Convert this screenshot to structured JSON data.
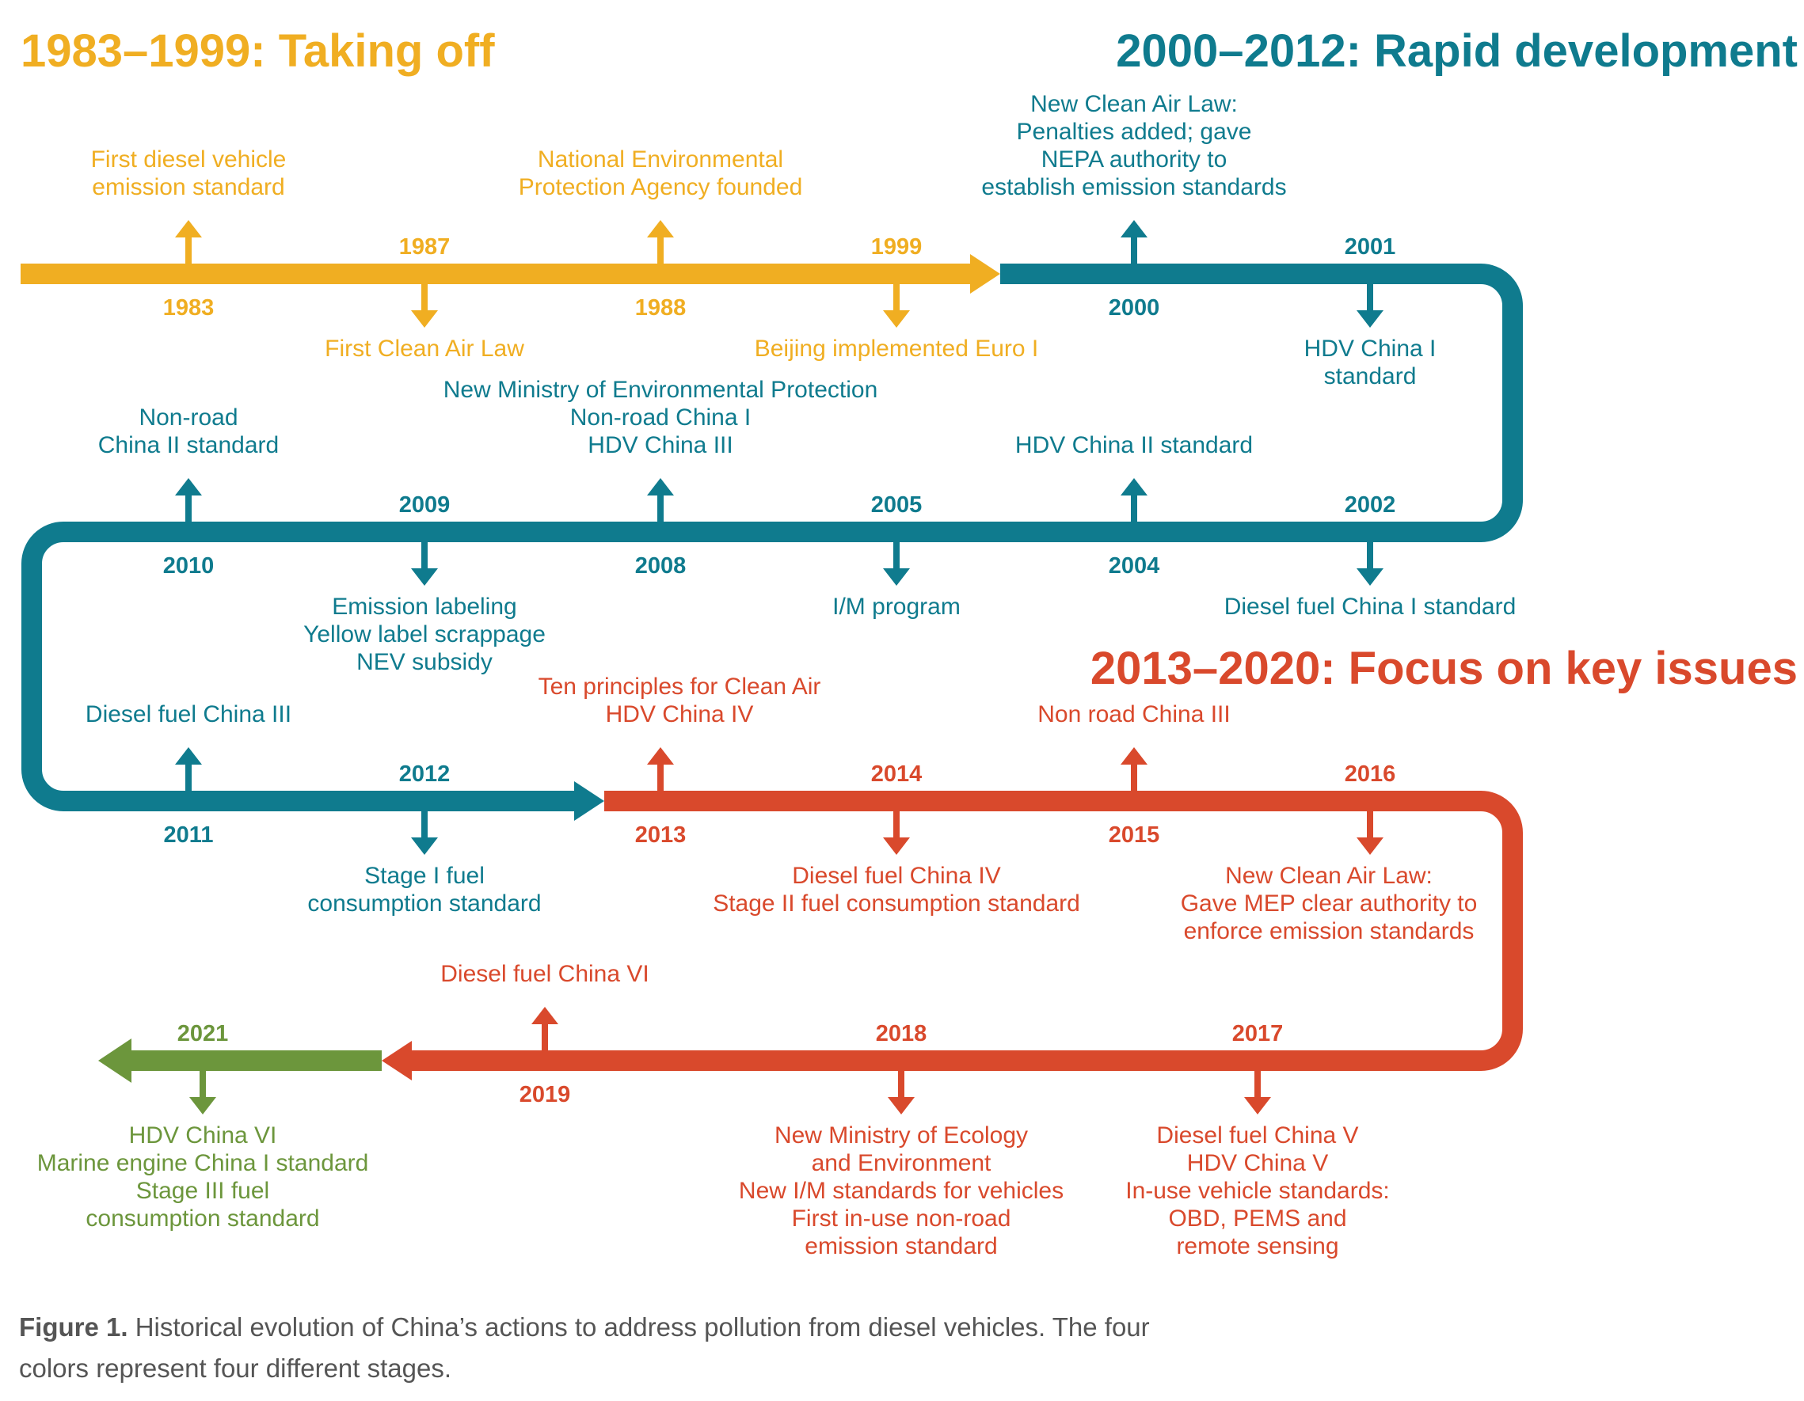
{
  "colors": {
    "stage1": "#f0ae22",
    "stage2": "#0f7b8e",
    "stage3": "#d9492c",
    "stage4": "#6c963c",
    "caption": "#555555"
  },
  "stages": [
    {
      "heading": "1983–1999: Taking off"
    },
    {
      "heading": "2000–2012: Rapid development"
    },
    {
      "heading": "2013–2020: Focus on key issues"
    }
  ],
  "events": [
    {
      "year": "1983",
      "label": [
        "First diesel vehicle",
        "emission standard"
      ]
    },
    {
      "year": "1987",
      "label": [
        "First Clean Air Law"
      ]
    },
    {
      "year": "1988",
      "label": [
        "National Environmental",
        "Protection Agency founded"
      ]
    },
    {
      "year": "1999",
      "label": [
        "Beijing implemented Euro I"
      ]
    },
    {
      "year": "2000",
      "label": [
        "New Clean Air Law:",
        "Penalties added; gave",
        "NEPA authority to",
        "establish emission standards"
      ]
    },
    {
      "year": "2001",
      "label": [
        "HDV China I",
        "standard"
      ]
    },
    {
      "year": "2002",
      "label": [
        "Diesel fuel China I standard"
      ]
    },
    {
      "year": "2004",
      "label": [
        "HDV China II standard"
      ]
    },
    {
      "year": "2005",
      "label": [
        "I/M program"
      ]
    },
    {
      "year": "2008",
      "label": [
        "New Ministry of Environmental Protection",
        "Non-road China I",
        "HDV China III"
      ]
    },
    {
      "year": "2009",
      "label": [
        "Emission labeling",
        "Yellow label scrappage",
        "NEV subsidy"
      ]
    },
    {
      "year": "2010",
      "label": [
        "Non-road",
        "China II standard"
      ]
    },
    {
      "year": "2011",
      "label": [
        "Diesel fuel China III"
      ]
    },
    {
      "year": "2012",
      "label": [
        "Stage I fuel",
        "consumption standard"
      ]
    },
    {
      "year": "2013",
      "label": [
        "Ten principles for Clean Air",
        "HDV China IV"
      ]
    },
    {
      "year": "2014",
      "label": [
        "Diesel fuel China IV",
        "Stage II fuel consumption standard"
      ]
    },
    {
      "year": "2015",
      "label": [
        "Non road China III"
      ]
    },
    {
      "year": "2016",
      "label": [
        "New Clean Air Law:",
        "Gave MEP clear authority to",
        "enforce emission standards"
      ]
    },
    {
      "year": "2017",
      "label": [
        "Diesel fuel China V",
        "HDV China V",
        "In-use vehicle standards:",
        "OBD,  PEMS and",
        "remote sensing"
      ]
    },
    {
      "year": "2018",
      "label": [
        "New Ministry of Ecology",
        "and Environment",
        "New I/M standards for vehicles",
        "First in-use non-road",
        "emission standard"
      ]
    },
    {
      "year": "2019",
      "label": [
        "Diesel fuel China VI"
      ]
    },
    {
      "year": "2021",
      "label": [
        "HDV China VI",
        "Marine engine China I standard",
        "Stage III fuel",
        "consumption standard"
      ]
    }
  ],
  "caption": {
    "bold": "Figure 1.",
    "line1": " Historical evolution of China’s actions to address pollution from diesel vehicles. The four",
    "line2": "colors represent four different stages."
  }
}
